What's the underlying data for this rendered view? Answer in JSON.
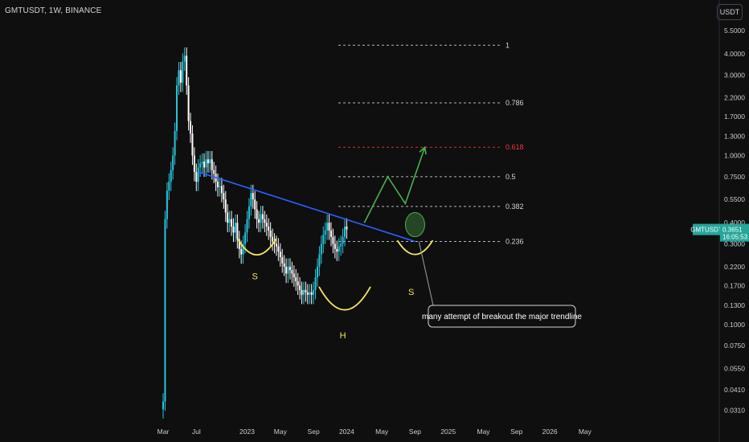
{
  "header": {
    "symbol_title": "GMTUSDT, 1W, BINANCE",
    "currency": "USDT"
  },
  "colors": {
    "background": "#0f0f0f",
    "up": "#26c6da",
    "down": "#ffffff",
    "trend": "#2962ff",
    "fib": "#d1d4dc",
    "fib_618": "#f23645",
    "projection": "#4caf50",
    "pattern": "#f5e663"
  },
  "chart_data": {
    "type": "candlestick",
    "y_scale": "log",
    "ylim": [
      0.028,
      6.0
    ],
    "x_ticks": [
      {
        "label": "Mar",
        "week": 0
      },
      {
        "label": "Jul",
        "week": 17
      },
      {
        "label": "2023",
        "week": 43
      },
      {
        "label": "May",
        "week": 60
      },
      {
        "label": "Sep",
        "week": 77
      },
      {
        "label": "2024",
        "week": 94
      },
      {
        "label": "May",
        "week": 112
      },
      {
        "label": "Sep",
        "week": 129
      },
      {
        "label": "2025",
        "week": 146
      },
      {
        "label": "May",
        "week": 164
      },
      {
        "label": "Sep",
        "week": 181
      },
      {
        "label": "2026",
        "week": 198
      },
      {
        "label": "May",
        "week": 216
      }
    ],
    "y_ticks": [
      {
        "label": "5.5000",
        "value": 5.5
      },
      {
        "label": "4.0000",
        "value": 4.0
      },
      {
        "label": "3.0000",
        "value": 3.0
      },
      {
        "label": "2.2000",
        "value": 2.2
      },
      {
        "label": "1.7000",
        "value": 1.7
      },
      {
        "label": "1.3000",
        "value": 1.3
      },
      {
        "label": "1.0000",
        "value": 1.0
      },
      {
        "label": "0.7500",
        "value": 0.75
      },
      {
        "label": "0.5500",
        "value": 0.55
      },
      {
        "label": "0.4000",
        "value": 0.4
      },
      {
        "label": "0.3000",
        "value": 0.3
      },
      {
        "label": "0.2200",
        "value": 0.22
      },
      {
        "label": "0.1700",
        "value": 0.17
      },
      {
        "label": "0.1300",
        "value": 0.13
      },
      {
        "label": "0.1000",
        "value": 0.1
      },
      {
        "label": "0.0750",
        "value": 0.075
      },
      {
        "label": "0.0550",
        "value": 0.055
      },
      {
        "label": "0.0410",
        "value": 0.041
      },
      {
        "label": "0.0310",
        "value": 0.031
      }
    ],
    "candles_close": [
      0.035,
      0.42,
      0.62,
      0.7,
      0.82,
      1.0,
      1.4,
      2.6,
      3.2,
      2.7,
      3.6,
      3.9,
      2.6,
      1.6,
      1.35,
      1.0,
      0.8,
      0.7,
      0.85,
      0.9,
      0.92,
      0.85,
      0.95,
      0.9,
      0.95,
      0.82,
      0.78,
      0.7,
      0.65,
      0.66,
      0.6,
      0.55,
      0.46,
      0.4,
      0.42,
      0.38,
      0.35,
      0.4,
      0.32,
      0.28,
      0.26,
      0.3,
      0.35,
      0.42,
      0.5,
      0.6,
      0.55,
      0.48,
      0.42,
      0.4,
      0.45,
      0.42,
      0.4,
      0.38,
      0.36,
      0.33,
      0.31,
      0.3,
      0.29,
      0.27,
      0.25,
      0.23,
      0.22,
      0.2,
      0.22,
      0.21,
      0.2,
      0.19,
      0.18,
      0.17,
      0.16,
      0.15,
      0.16,
      0.155,
      0.15,
      0.155,
      0.15,
      0.16,
      0.19,
      0.22,
      0.26,
      0.3,
      0.34,
      0.36,
      0.4,
      0.36,
      0.33,
      0.3,
      0.28,
      0.27,
      0.29,
      0.3,
      0.33,
      0.38,
      0.3651
    ],
    "trendline": [
      {
        "week": 18,
        "value": 0.8
      },
      {
        "week": 129,
        "value": 0.31
      }
    ],
    "fib_levels": [
      {
        "label": "1",
        "value": 4.5
      },
      {
        "label": "0.786",
        "value": 2.05
      },
      {
        "label": "0.618",
        "value": 1.12
      },
      {
        "label": "0.5",
        "value": 0.75
      },
      {
        "label": "0.382",
        "value": 0.5
      },
      {
        "label": "0.236",
        "value": 0.31
      }
    ],
    "projection": [
      {
        "week": 103,
        "value": 0.4
      },
      {
        "week": 115,
        "value": 0.75
      },
      {
        "week": 124,
        "value": 0.52
      },
      {
        "week": 134,
        "value": 1.12
      }
    ],
    "current_price": {
      "symbol": "GMTUSDT",
      "value": "0.3651",
      "countdown": "16:05:53",
      "numeric": 0.3651
    },
    "annotations": {
      "left_shoulder": "S",
      "head": "H",
      "right_shoulder": "S",
      "note": "many attempt of breakout the major trendline"
    }
  }
}
